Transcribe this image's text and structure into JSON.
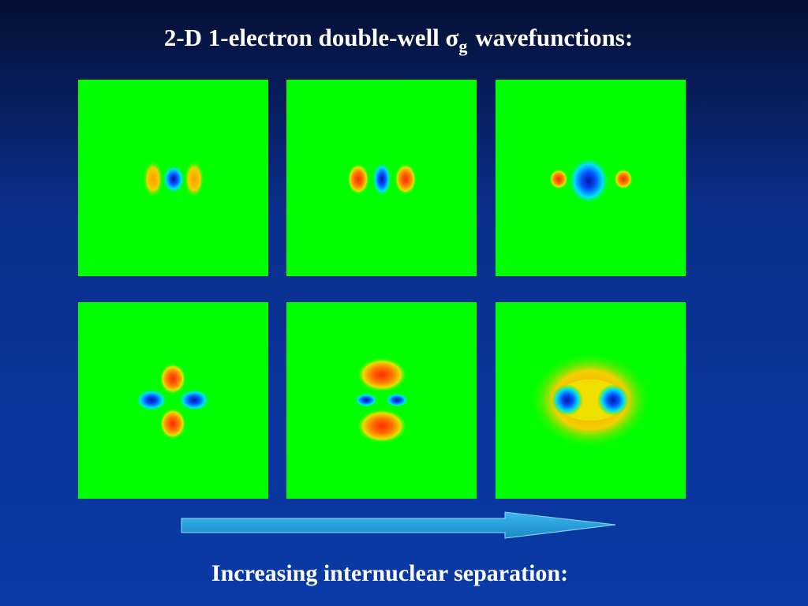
{
  "title": {
    "main": "2-D 1-electron double-well σ",
    "subscript": "g",
    "rest": "wavefunctions:"
  },
  "caption": "Increasing internuclear separation:"
}
